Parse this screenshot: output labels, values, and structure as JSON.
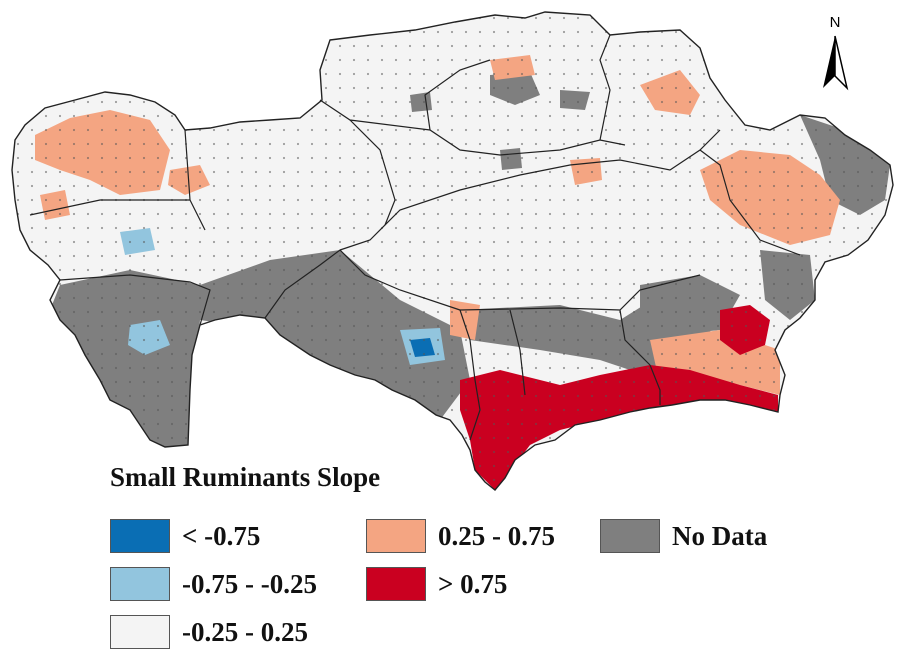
{
  "legend": {
    "title": "Small Ruminants Slope",
    "items": [
      {
        "label": "< -0.75",
        "color": "#0a6eb4"
      },
      {
        "label": "-0.75 - -0.25",
        "color": "#92c5de"
      },
      {
        "label": "-0.25 - 0.25",
        "color": "#f4f4f4"
      },
      {
        "label": "0.25 - 0.75",
        "color": "#f4a582"
      },
      {
        "label": "> 0.75",
        "color": "#ca0020"
      },
      {
        "label": "No Data",
        "color": "#7f7f7f"
      }
    ]
  },
  "north_arrow": {
    "label": "N",
    "icon": "north-arrow-icon"
  },
  "colors": {
    "boundary": "#222222",
    "stipple": "#555555"
  }
}
